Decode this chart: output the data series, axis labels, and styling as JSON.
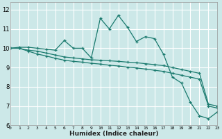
{
  "xlabel": "Humidex (Indice chaleur)",
  "bg_color": "#cce8e8",
  "line_color": "#1a7a6e",
  "grid_color": "#ffffff",
  "xlim": [
    0,
    23
  ],
  "ylim": [
    6,
    12.4
  ],
  "xticks": [
    0,
    1,
    2,
    3,
    4,
    5,
    6,
    7,
    8,
    9,
    10,
    11,
    12,
    13,
    14,
    15,
    16,
    17,
    18,
    19,
    20,
    21,
    22,
    23
  ],
  "yticks": [
    6,
    7,
    8,
    9,
    10,
    11,
    12
  ],
  "line1_x": [
    0,
    1,
    2,
    3,
    4,
    5,
    6,
    7,
    8,
    9,
    10,
    11,
    12,
    13,
    14,
    15,
    16,
    17,
    18,
    19,
    20,
    21,
    22,
    23
  ],
  "line1_y": [
    10.0,
    10.05,
    10.05,
    10.0,
    9.95,
    9.9,
    10.4,
    10.0,
    10.0,
    9.5,
    11.55,
    11.0,
    11.7,
    11.1,
    10.35,
    10.6,
    10.5,
    9.7,
    8.5,
    8.2,
    7.2,
    6.5,
    6.35,
    6.7
  ],
  "line2_x": [
    0,
    1,
    2,
    3,
    4,
    5,
    6,
    7,
    8,
    9,
    10,
    11,
    12,
    13,
    14,
    15,
    16,
    17,
    18,
    19,
    20,
    21,
    22,
    23
  ],
  "line2_y": [
    10.0,
    10.0,
    9.9,
    9.85,
    9.75,
    9.65,
    9.55,
    9.5,
    9.45,
    9.4,
    9.38,
    9.35,
    9.32,
    9.28,
    9.25,
    9.2,
    9.15,
    9.1,
    9.0,
    8.9,
    8.8,
    8.7,
    7.1,
    7.0
  ],
  "line3_x": [
    0,
    1,
    2,
    3,
    4,
    5,
    6,
    7,
    8,
    9,
    10,
    11,
    12,
    13,
    14,
    15,
    16,
    17,
    18,
    19,
    20,
    21,
    22,
    23
  ],
  "line3_y": [
    10.0,
    10.0,
    9.85,
    9.7,
    9.6,
    9.48,
    9.38,
    9.32,
    9.28,
    9.22,
    9.18,
    9.12,
    9.08,
    9.02,
    8.98,
    8.92,
    8.86,
    8.8,
    8.7,
    8.6,
    8.5,
    8.4,
    7.0,
    6.9
  ]
}
